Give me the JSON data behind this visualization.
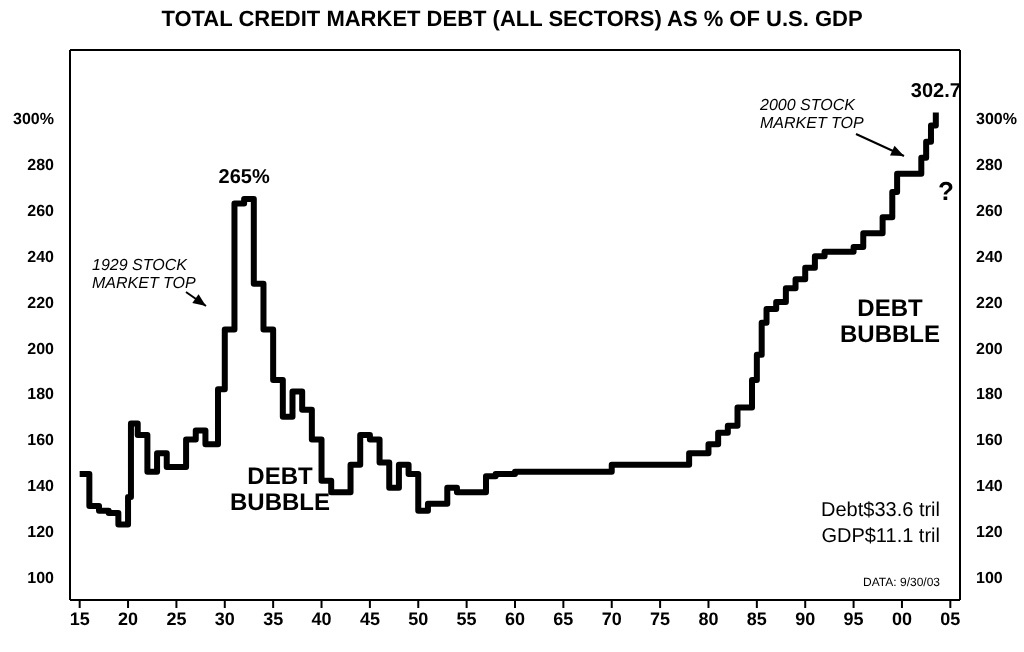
{
  "chart_data": {
    "type": "step",
    "title": "TOTAL CREDIT MARKET DEBT (ALL SECTORS) AS % OF U.S. GDP",
    "series": [
      {
        "color": "#000000",
        "x": [
          1915,
          1916,
          1917,
          1918,
          1919,
          1920,
          1920.3,
          1921,
          1922,
          1923,
          1924,
          1925,
          1926,
          1927,
          1928,
          1929.3,
          1930,
          1931,
          1932,
          1933,
          1934,
          1935,
          1936,
          1937,
          1938,
          1939,
          1940,
          1941,
          1942,
          1943,
          1944,
          1945,
          1946,
          1947,
          1948,
          1949,
          1950,
          1951,
          1952,
          1953,
          1954,
          1955,
          1956,
          1957,
          1958,
          1959,
          1960,
          1970,
          1978,
          1980,
          1981,
          1982,
          1983,
          1984.5,
          1985,
          1985.5,
          1986,
          1987,
          1988,
          1989,
          1990,
          1991,
          1992,
          1995,
          1996,
          1998,
          1999,
          1999.5,
          2001,
          2002,
          2002.5,
          2003,
          2003.5
        ],
        "values": [
          145,
          131,
          129,
          128,
          123,
          135,
          167,
          162,
          146,
          154,
          148,
          148,
          160,
          164,
          158,
          182,
          208,
          263,
          265,
          228,
          208,
          186,
          170,
          181,
          173,
          160,
          142,
          137,
          137,
          149,
          162,
          160,
          150,
          139,
          149,
          145,
          129,
          132,
          132,
          139,
          137,
          137,
          137,
          144,
          145,
          145,
          146,
          149,
          154,
          158,
          163,
          166,
          174,
          186,
          197,
          211,
          217,
          220,
          226,
          230,
          235,
          240,
          242,
          244,
          250,
          257,
          268,
          276,
          276,
          283,
          290,
          297,
          302.7
        ]
      }
    ],
    "xlim": [
      1914,
      2006
    ],
    "xticks": [
      {
        "value": 1915,
        "label": "15"
      },
      {
        "value": 1920,
        "label": "20"
      },
      {
        "value": 1925,
        "label": "25"
      },
      {
        "value": 1930,
        "label": "30"
      },
      {
        "value": 1935,
        "label": "35"
      },
      {
        "value": 1940,
        "label": "40"
      },
      {
        "value": 1945,
        "label": "45"
      },
      {
        "value": 1950,
        "label": "50"
      },
      {
        "value": 1955,
        "label": "55"
      },
      {
        "value": 1960,
        "label": "60"
      },
      {
        "value": 1965,
        "label": "65"
      },
      {
        "value": 1970,
        "label": "70"
      },
      {
        "value": 1975,
        "label": "75"
      },
      {
        "value": 1980,
        "label": "80"
      },
      {
        "value": 1985,
        "label": "85"
      },
      {
        "value": 1990,
        "label": "90"
      },
      {
        "value": 1995,
        "label": "95"
      },
      {
        "value": 2000,
        "label": "00"
      },
      {
        "value": 2005,
        "label": "05"
      }
    ],
    "ylim": [
      90,
      330
    ],
    "yticks": [
      100,
      120,
      140,
      160,
      180,
      200,
      220,
      240,
      260,
      280,
      {
        "value": 300,
        "label": "300%"
      }
    ],
    "y2lim": [
      90,
      330
    ],
    "y2ticks": [
      100,
      120,
      140,
      160,
      180,
      200,
      220,
      240,
      260,
      280,
      {
        "value": 300,
        "label": "300%"
      }
    ],
    "marker": "none",
    "line_style": "solid",
    "annotations": [
      {
        "text": "265%",
        "x": 1932,
        "y": 265
      },
      {
        "text": "302.7",
        "x": 2003.5,
        "y": 302.7
      },
      "1929 STOCK MARKET TOP",
      "2000 STOCK MARKET TOP",
      "?",
      "DEBT BUBBLE",
      "DEBT BUBBLE",
      "Debt$33.6 tril",
      "GDP$11.1 tril",
      "DATA: 9/30/03"
    ]
  }
}
